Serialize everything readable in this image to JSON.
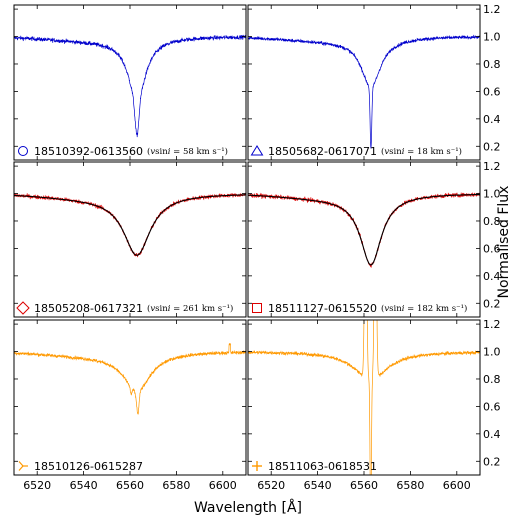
{
  "chart_data": {
    "type": "line",
    "xlabel": "Wavelength [Å]",
    "ylabel": "Normalised Flux",
    "xlim": [
      6510,
      6610
    ],
    "ylim": [
      0.1,
      1.23
    ],
    "x_ticks": [
      6520,
      6540,
      6560,
      6580,
      6600
    ],
    "y_ticks": [
      0.2,
      0.4,
      0.6,
      0.8,
      1.0,
      1.2
    ],
    "x_tick_labels": [
      "6520",
      "6540",
      "6560",
      "6580",
      "6600"
    ],
    "y_tick_labels": [
      "0.2",
      "0.4",
      "0.6",
      "0.8",
      "1.0",
      "1.2"
    ],
    "grid": false,
    "panels": [
      {
        "star": "18510392-0613560",
        "marker": "circle",
        "color": "#0000cc",
        "vsini": "58",
        "vsini_unit": "km s⁻¹",
        "has_fit": false,
        "profile": {
          "center": 6563,
          "width": 4.5,
          "depth": 0.45,
          "core_depth": 0.25,
          "core_width": 0.8
        },
        "noise": 0.015,
        "x": [
          6510,
          6520,
          6530,
          6540,
          6550,
          6555,
          6560,
          6562,
          6563,
          6564,
          6566,
          6570,
          6580,
          6590,
          6600,
          6610
        ],
        "y": [
          0.98,
          0.97,
          0.95,
          0.9,
          0.78,
          0.67,
          0.52,
          0.42,
          0.34,
          0.42,
          0.55,
          0.72,
          0.87,
          0.93,
          0.96,
          0.98
        ]
      },
      {
        "star": "18505682-0617071",
        "marker": "triangle",
        "color": "#0000cc",
        "vsini": "18",
        "vsini_unit": "km s⁻¹",
        "has_fit": false,
        "profile": {
          "center": 6563,
          "width": 5.0,
          "depth": 0.35,
          "core_depth": 0.45,
          "core_width": 0.35
        },
        "noise": 0.012,
        "x": [
          6510,
          6520,
          6530,
          6540,
          6550,
          6555,
          6560,
          6562,
          6563,
          6564,
          6566,
          6570,
          6580,
          6590,
          6600,
          6610
        ],
        "y": [
          0.98,
          0.97,
          0.95,
          0.9,
          0.8,
          0.72,
          0.62,
          0.45,
          0.2,
          0.45,
          0.63,
          0.76,
          0.88,
          0.93,
          0.96,
          0.97
        ]
      },
      {
        "star": "18505208-0617321",
        "marker": "diamond",
        "color": "#dd0000",
        "vsini": "261",
        "vsini_unit": "km s⁻¹",
        "has_fit": true,
        "profile": {
          "center": 6563,
          "width": 7.0,
          "depth": 0.43,
          "core_depth": 0.0,
          "core_width": 1.0
        },
        "noise": 0.015,
        "x": [
          6510,
          6520,
          6530,
          6540,
          6550,
          6555,
          6560,
          6563,
          6566,
          6570,
          6575,
          6580,
          6590,
          6600,
          6610
        ],
        "y": [
          0.98,
          0.96,
          0.93,
          0.87,
          0.74,
          0.65,
          0.58,
          0.55,
          0.58,
          0.66,
          0.76,
          0.84,
          0.92,
          0.95,
          0.97
        ]
      },
      {
        "star": "18511127-0615520",
        "marker": "square",
        "color": "#dd0000",
        "vsini": "182",
        "vsini_unit": "km s⁻¹",
        "has_fit": true,
        "profile": {
          "center": 6563,
          "width": 5.5,
          "depth": 0.5,
          "core_depth": 0.0,
          "core_width": 1.0
        },
        "noise": 0.015,
        "x": [
          6510,
          6520,
          6530,
          6540,
          6550,
          6555,
          6560,
          6563,
          6566,
          6570,
          6575,
          6580,
          6590,
          6600,
          6610
        ],
        "y": [
          0.97,
          0.96,
          0.93,
          0.88,
          0.76,
          0.65,
          0.55,
          0.48,
          0.55,
          0.67,
          0.78,
          0.85,
          0.92,
          0.95,
          0.97
        ]
      },
      {
        "star": "18510126-0615287",
        "marker": "tri_right",
        "color": "#ff9900",
        "vsini": "",
        "vsini_unit": "",
        "has_fit": false,
        "profile": {
          "center": 6563,
          "width": 7.0,
          "depth": 0.27,
          "core_depth": 0.08,
          "core_width": 0.8
        },
        "noise": 0.012,
        "x": [
          6510,
          6520,
          6530,
          6540,
          6550,
          6555,
          6560,
          6561,
          6563,
          6565,
          6570,
          6580,
          6590,
          6600,
          6610
        ],
        "y": [
          0.98,
          0.97,
          0.94,
          0.9,
          0.83,
          0.78,
          0.74,
          0.7,
          0.66,
          0.72,
          0.8,
          0.89,
          0.94,
          0.97,
          0.99
        ]
      },
      {
        "star": "18511063-0618531",
        "marker": "plus",
        "color": "#ff9900",
        "vsini": "",
        "vsini_unit": "",
        "has_fit": false,
        "profile": {
          "center": 6563,
          "width": 8.0,
          "depth": 0.25,
          "core_depth": 0.0,
          "core_width": 1.0
        },
        "noise": 0.012,
        "x": [
          6510,
          6520,
          6530,
          6540,
          6550,
          6556,
          6559,
          6560,
          6561,
          6562,
          6563,
          6564,
          6565,
          6566,
          6568,
          6570,
          6580,
          6590,
          6600,
          6610
        ],
        "y": [
          0.99,
          0.98,
          0.95,
          0.9,
          0.83,
          0.76,
          0.8,
          1.1,
          1.3,
          0.9,
          0.18,
          0.95,
          1.3,
          1.05,
          0.84,
          0.8,
          0.87,
          0.93,
          0.97,
          0.99
        ]
      }
    ]
  }
}
